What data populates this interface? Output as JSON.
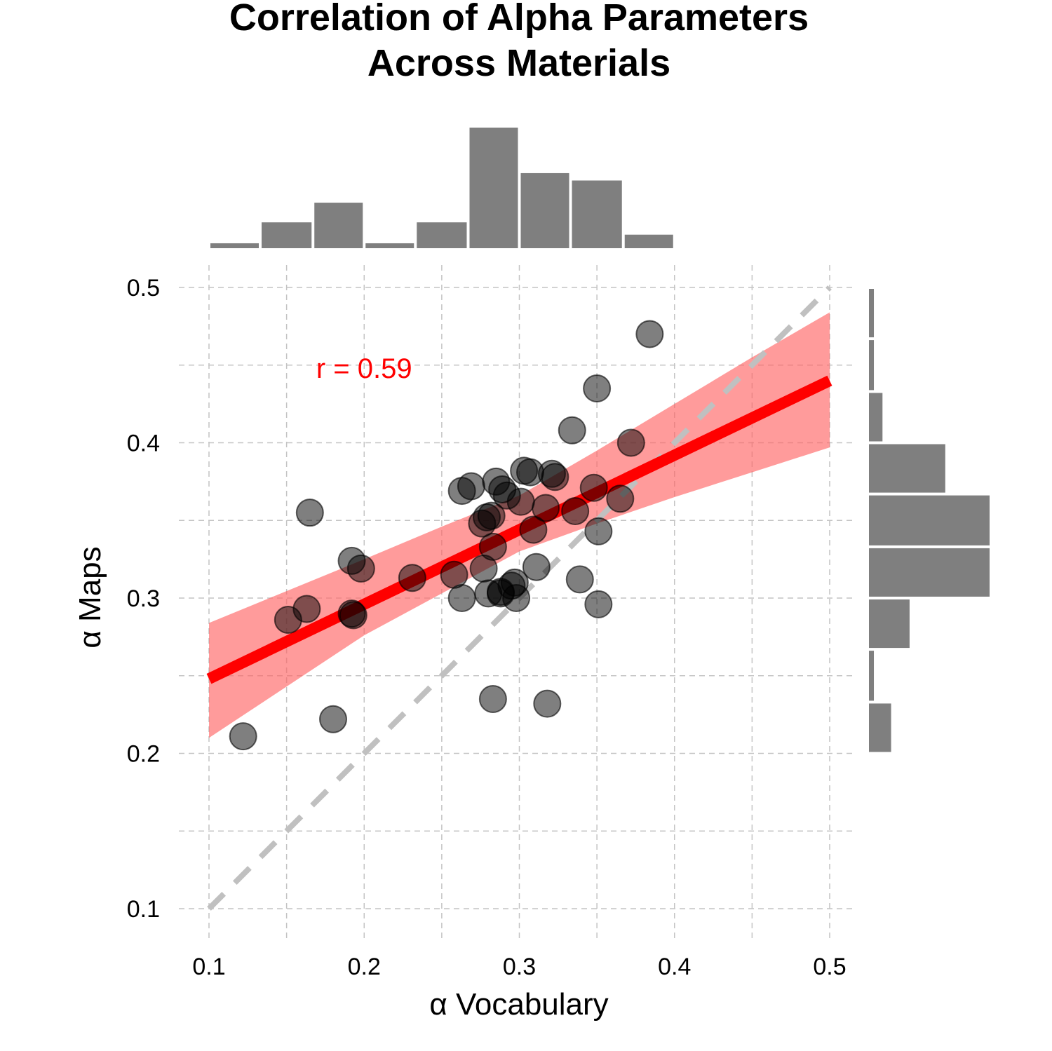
{
  "chart_data": {
    "type": "scatter",
    "title_lines": [
      "Correlation of Alpha Parameters",
      "Across Materials"
    ],
    "xlabel": "α Vocabulary",
    "ylabel": "α Maps",
    "xlim": [
      0.1,
      0.5
    ],
    "ylim": [
      0.1,
      0.5
    ],
    "x_ticks": [
      "0.1",
      "0.2",
      "0.3",
      "0.4",
      "0.5"
    ],
    "y_ticks": [
      "0.1",
      "0.2",
      "0.3",
      "0.4",
      "0.5"
    ],
    "grid": true,
    "annotation": {
      "text": "r = 0.59",
      "x": 0.2,
      "y": 0.448,
      "color": "#ff0000"
    },
    "fit_line": {
      "x": [
        0.1,
        0.5
      ],
      "y": [
        0.248,
        0.44
      ],
      "color": "#ff0000"
    },
    "confidence_band": {
      "x": [
        0.1,
        0.2,
        0.25,
        0.3,
        0.35,
        0.4,
        0.45,
        0.5
      ],
      "lower": [
        0.21,
        0.276,
        0.303,
        0.33,
        0.348,
        0.365,
        0.381,
        0.397
      ],
      "upper": [
        0.284,
        0.325,
        0.346,
        0.366,
        0.395,
        0.425,
        0.455,
        0.484
      ],
      "color": "#ff6666"
    },
    "identity_line": {
      "x": [
        0.1,
        0.5
      ],
      "y": [
        0.1,
        0.5
      ],
      "color": "#c0c0c0"
    },
    "points": {
      "x": [
        0.122,
        0.165,
        0.151,
        0.163,
        0.18,
        0.192,
        0.192,
        0.198,
        0.193,
        0.231,
        0.258,
        0.263,
        0.263,
        0.269,
        0.276,
        0.279,
        0.282,
        0.277,
        0.283,
        0.28,
        0.285,
        0.289,
        0.288,
        0.292,
        0.295,
        0.297,
        0.298,
        0.301,
        0.303,
        0.307,
        0.309,
        0.311,
        0.317,
        0.321,
        0.323,
        0.334,
        0.336,
        0.339,
        0.348,
        0.35,
        0.351,
        0.351,
        0.365,
        0.372,
        0.384,
        0.283,
        0.288,
        0.318
      ],
      "y": [
        0.211,
        0.355,
        0.286,
        0.293,
        0.222,
        0.324,
        0.29,
        0.319,
        0.289,
        0.313,
        0.315,
        0.369,
        0.3,
        0.372,
        0.348,
        0.352,
        0.353,
        0.319,
        0.333,
        0.303,
        0.375,
        0.37,
        0.304,
        0.366,
        0.308,
        0.31,
        0.3,
        0.362,
        0.382,
        0.381,
        0.344,
        0.32,
        0.358,
        0.38,
        0.378,
        0.408,
        0.356,
        0.312,
        0.371,
        0.435,
        0.343,
        0.296,
        0.364,
        0.4,
        0.47,
        0.235,
        0.303,
        0.232
      ],
      "color": "#000000",
      "opacity": 0.5
    },
    "x_histogram": {
      "bin_edges": [
        0.1,
        0.133,
        0.167,
        0.2,
        0.233,
        0.267,
        0.3,
        0.333,
        0.367,
        0.4
      ],
      "counts": [
        0.4,
        2.1,
        3.7,
        0.4,
        2.1,
        9.8,
        6.1,
        5.5,
        1.1
      ]
    },
    "y_histogram": {
      "bin_edges": [
        0.2,
        0.233,
        0.267,
        0.3,
        0.333,
        0.367,
        0.4,
        0.433,
        0.467,
        0.5
      ],
      "counts": [
        1.8,
        0.4,
        3.3,
        9.8,
        9.8,
        6.2,
        1.1,
        0.4,
        0.4
      ]
    },
    "histogram_color": "#7f7f7f"
  }
}
